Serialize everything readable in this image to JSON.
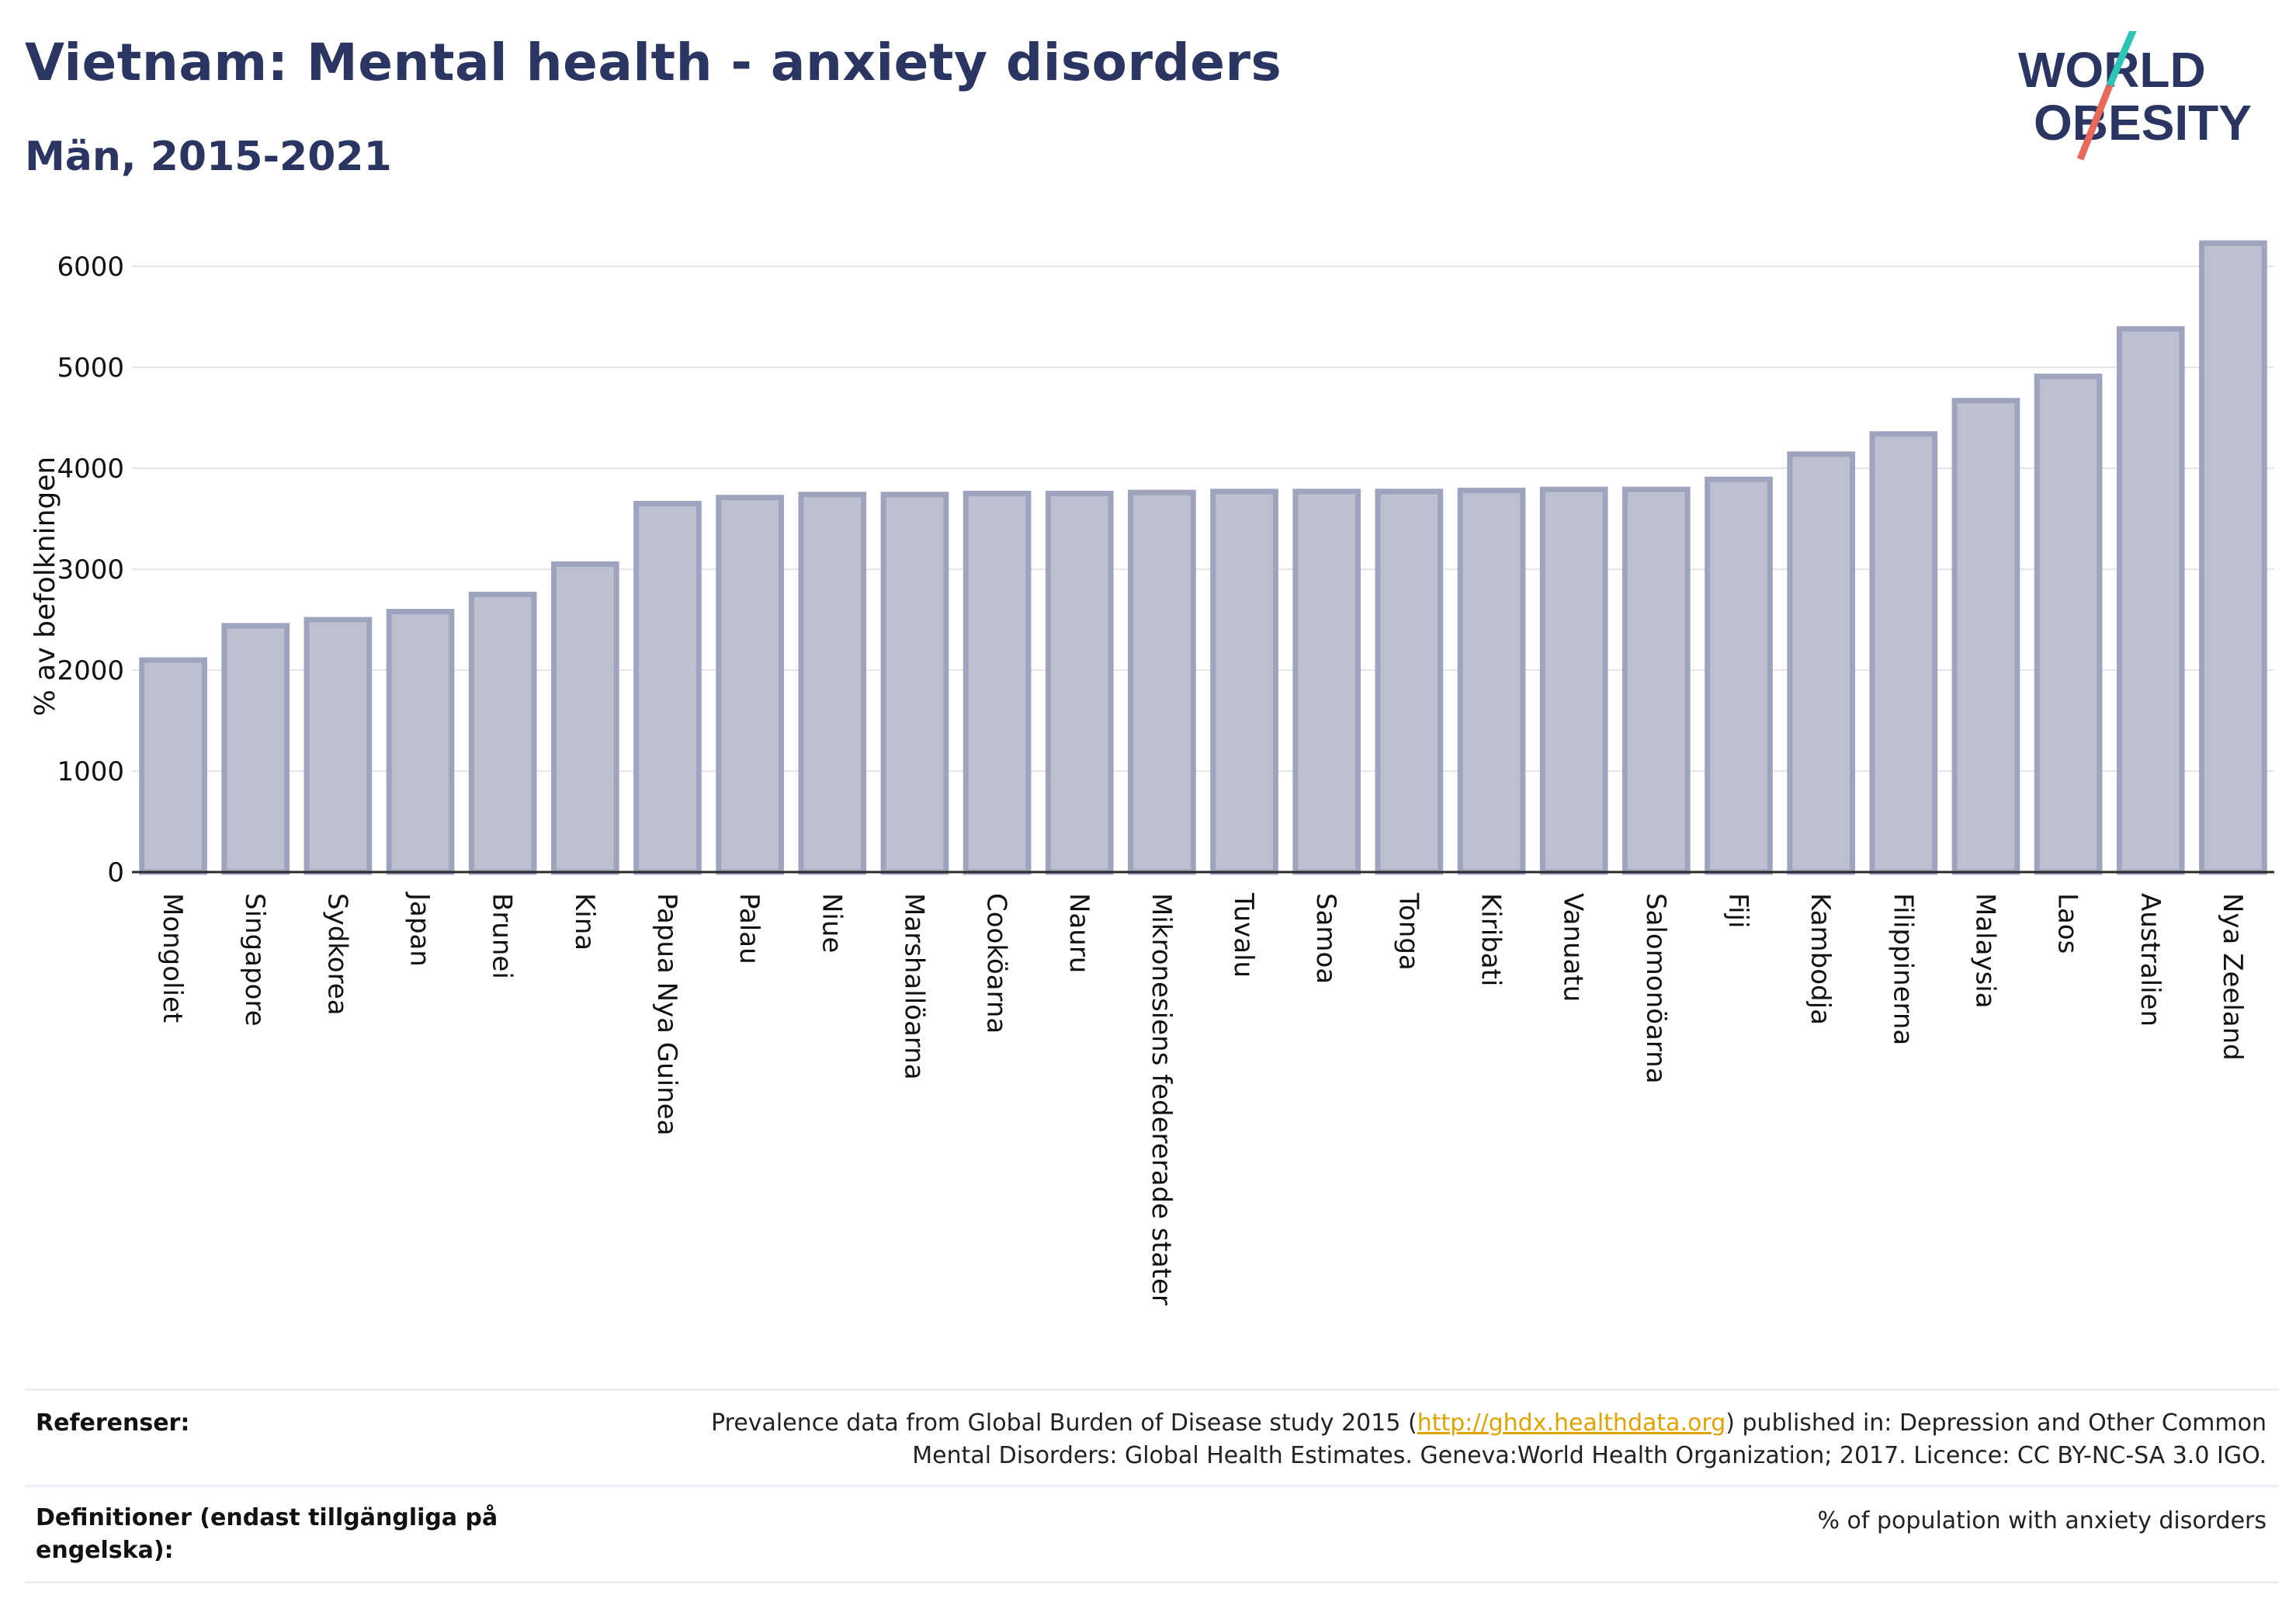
{
  "header": {
    "title": "Vietnam: Mental health - anxiety disorders",
    "subtitle": "Män, 2015-2021"
  },
  "logo": {
    "line1": "WORLD",
    "line2": "OBESITY",
    "accent1": "#2ec4b6",
    "accent2": "#e8685a"
  },
  "chart_data": {
    "type": "bar",
    "title": "Vietnam: Mental health - anxiety disorders",
    "subtitle": "Män, 2015-2021",
    "ylabel": "% av befolkningen",
    "xlabel": "",
    "ylim": [
      0,
      6300
    ],
    "yticks": [
      0,
      1000,
      2000,
      3000,
      4000,
      5000,
      6000
    ],
    "grid": true,
    "bar_fill": "#bcc0cf",
    "bar_stroke": "#9ea3be",
    "categories": [
      "Mongoliet",
      "Singapore",
      "Sydkorea",
      "Japan",
      "Brunei",
      "Kina",
      "Papua Nya Guinea",
      "Palau",
      "Niue",
      "Marshallöarna",
      "Cooköarna",
      "Nauru",
      "Mikronesiens federerade stater",
      "Tuvalu",
      "Samoa",
      "Tonga",
      "Kiribati",
      "Vanuatu",
      "Salomonöarna",
      "Fiji",
      "Kambodja",
      "Filippinerna",
      "Malaysia",
      "Laos",
      "Australien",
      "Nya Zeeland"
    ],
    "values": [
      2100,
      2440,
      2500,
      2580,
      2750,
      3050,
      3650,
      3710,
      3740,
      3740,
      3750,
      3750,
      3760,
      3770,
      3770,
      3770,
      3780,
      3790,
      3790,
      3890,
      4140,
      4340,
      4670,
      4910,
      5380,
      6230
    ]
  },
  "footer": {
    "references_label": "Referenser:",
    "references_line1_pre": "Prevalence data from Global Burden of Disease study 2015 (",
    "references_link": "http://ghdx.healthdata.org",
    "references_line1_post": ") published in: Depression and Other Common",
    "references_line2": "Mental Disorders: Global Health Estimates. Geneva:World Health Organization; 2017. Licence: CC BY-NC-SA 3.0 IGO.",
    "definitions_label_line1": "Definitioner (endast tillgängliga på",
    "definitions_label_line2": "engelska):",
    "definitions_text": "% of population with anxiety disorders"
  }
}
